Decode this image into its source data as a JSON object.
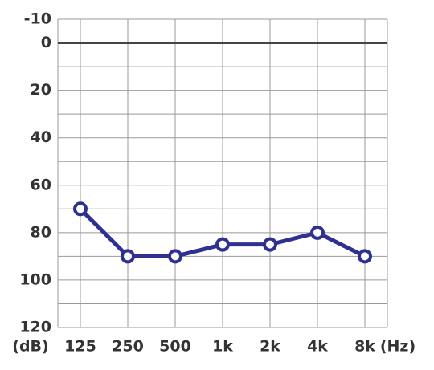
{
  "chart_data": {
    "type": "line",
    "categories": [
      "125",
      "250",
      "500",
      "1k",
      "2k",
      "4k",
      "8k"
    ],
    "series": [
      {
        "color": "#2e3192",
        "values": [
          70,
          90,
          90,
          85,
          85,
          80,
          90
        ]
      }
    ],
    "ylim": [
      -10,
      120
    ],
    "y_inverted": true,
    "yticks": [
      -10,
      0,
      20,
      40,
      60,
      80,
      100,
      120
    ],
    "minor_yticks": [
      10,
      30,
      50,
      70,
      90,
      110
    ],
    "reference_line": 0,
    "y_unit_label": "(dB)",
    "x_unit_label": "(Hz)",
    "grid": true
  }
}
